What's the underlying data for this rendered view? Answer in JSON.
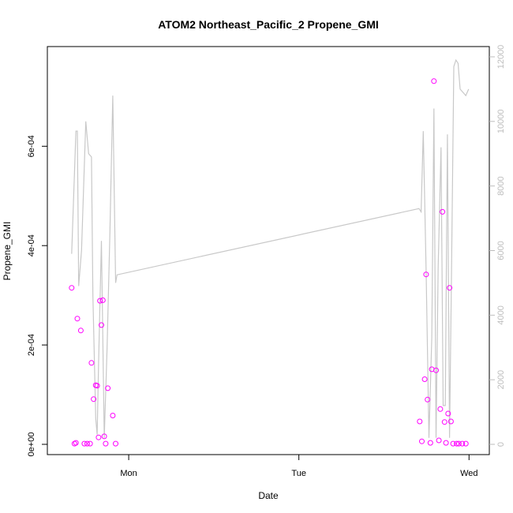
{
  "chart_data": {
    "type": "scatter",
    "title": "ATOM2 Northeast_Pacific_2 Propene_GMI",
    "xlabel": "Date",
    "ylabel": "Propene_GMI",
    "x_range_hours": [
      0,
      60
    ],
    "x_ticks": [
      {
        "label": "Mon",
        "hour": 10.25
      },
      {
        "label": "Tue",
        "hour": 34.25
      },
      {
        "label": "Wed",
        "hour": 58.25
      }
    ],
    "ylim_left": [
      0,
      0.00078
    ],
    "y_ticks_left": [
      {
        "label": "0e+00",
        "value": 0
      },
      {
        "label": "2e-04",
        "value": 0.0002
      },
      {
        "label": "4e-04",
        "value": 0.0004
      },
      {
        "label": "6e-04",
        "value": 0.0006
      }
    ],
    "ylim_right": [
      0,
      12000
    ],
    "y_ticks_right": [
      "0",
      "2000",
      "4000",
      "6000",
      "8000",
      "10000",
      "12000"
    ],
    "grid": false,
    "colors": {
      "points": "#ff00ff",
      "line": "#c8c8c8",
      "right_axis": "#bdbdbd"
    },
    "series": [
      {
        "kind": "points",
        "axis": "left",
        "x": [
          2.2,
          2.6,
          2.8,
          3.0,
          3.5,
          4.0,
          4.4,
          4.8,
          5.0,
          5.3,
          5.6,
          5.8,
          6.0,
          6.2,
          6.4,
          6.6,
          6.8,
          7.0,
          7.3,
          8.0,
          8.4,
          51.3,
          51.6,
          52.0,
          52.2,
          52.4,
          52.8,
          53.0,
          53.3,
          53.6,
          54.0,
          54.2,
          54.5,
          54.8,
          55.0,
          55.3,
          55.5,
          55.7,
          56.0,
          56.5,
          56.8,
          57.3,
          57.8
        ],
        "y": [
          0.000315,
          1.5e-06,
          3e-06,
          0.000253,
          0.000229,
          1.5e-06,
          1.5e-06,
          1.5e-06,
          0.000164,
          9.1e-05,
          0.000119,
          0.000118,
          1.4e-05,
          0.000289,
          0.00024,
          0.00029,
          1.6e-05,
          1.5e-06,
          0.000113,
          5.8e-05,
          1.5e-06,
          4.6e-05,
          6e-06,
          0.000131,
          0.000342,
          9e-05,
          3e-06,
          0.000151,
          0.000731,
          0.000149,
          8e-06,
          7.1e-05,
          0.000468,
          4.5e-05,
          3e-06,
          6.2e-05,
          0.000315,
          4.6e-05,
          1.5e-06,
          1.5e-06,
          1.5e-06,
          1.5e-06,
          1.5e-06
        ]
      },
      {
        "kind": "line",
        "axis": "right",
        "x": [
          2.2,
          2.8,
          3.0,
          3.2,
          3.6,
          4.2,
          4.6,
          5.0,
          5.2,
          5.6,
          5.8,
          6.0,
          6.4,
          6.8,
          7.2,
          7.6,
          8.0,
          8.4,
          8.6,
          51.2,
          51.5,
          51.8,
          52.2,
          52.6,
          53.0,
          53.3,
          53.6,
          53.9,
          54.3,
          54.6,
          54.9,
          55.2,
          55.5,
          55.8,
          56.1,
          56.4,
          56.7,
          57.0,
          57.4,
          57.8,
          58.2
        ],
        "y": [
          5900,
          9700,
          9700,
          4900,
          6000,
          10000,
          9000,
          8900,
          4600,
          800,
          300,
          2500,
          6300,
          200,
          3000,
          6600,
          10800,
          5000,
          5250,
          7300,
          7200,
          9700,
          5400,
          200,
          3300,
          10400,
          200,
          5500,
          9200,
          1200,
          1200,
          9600,
          200,
          5800,
          11700,
          11900,
          11800,
          11000,
          10900,
          10800,
          11000
        ]
      }
    ]
  }
}
